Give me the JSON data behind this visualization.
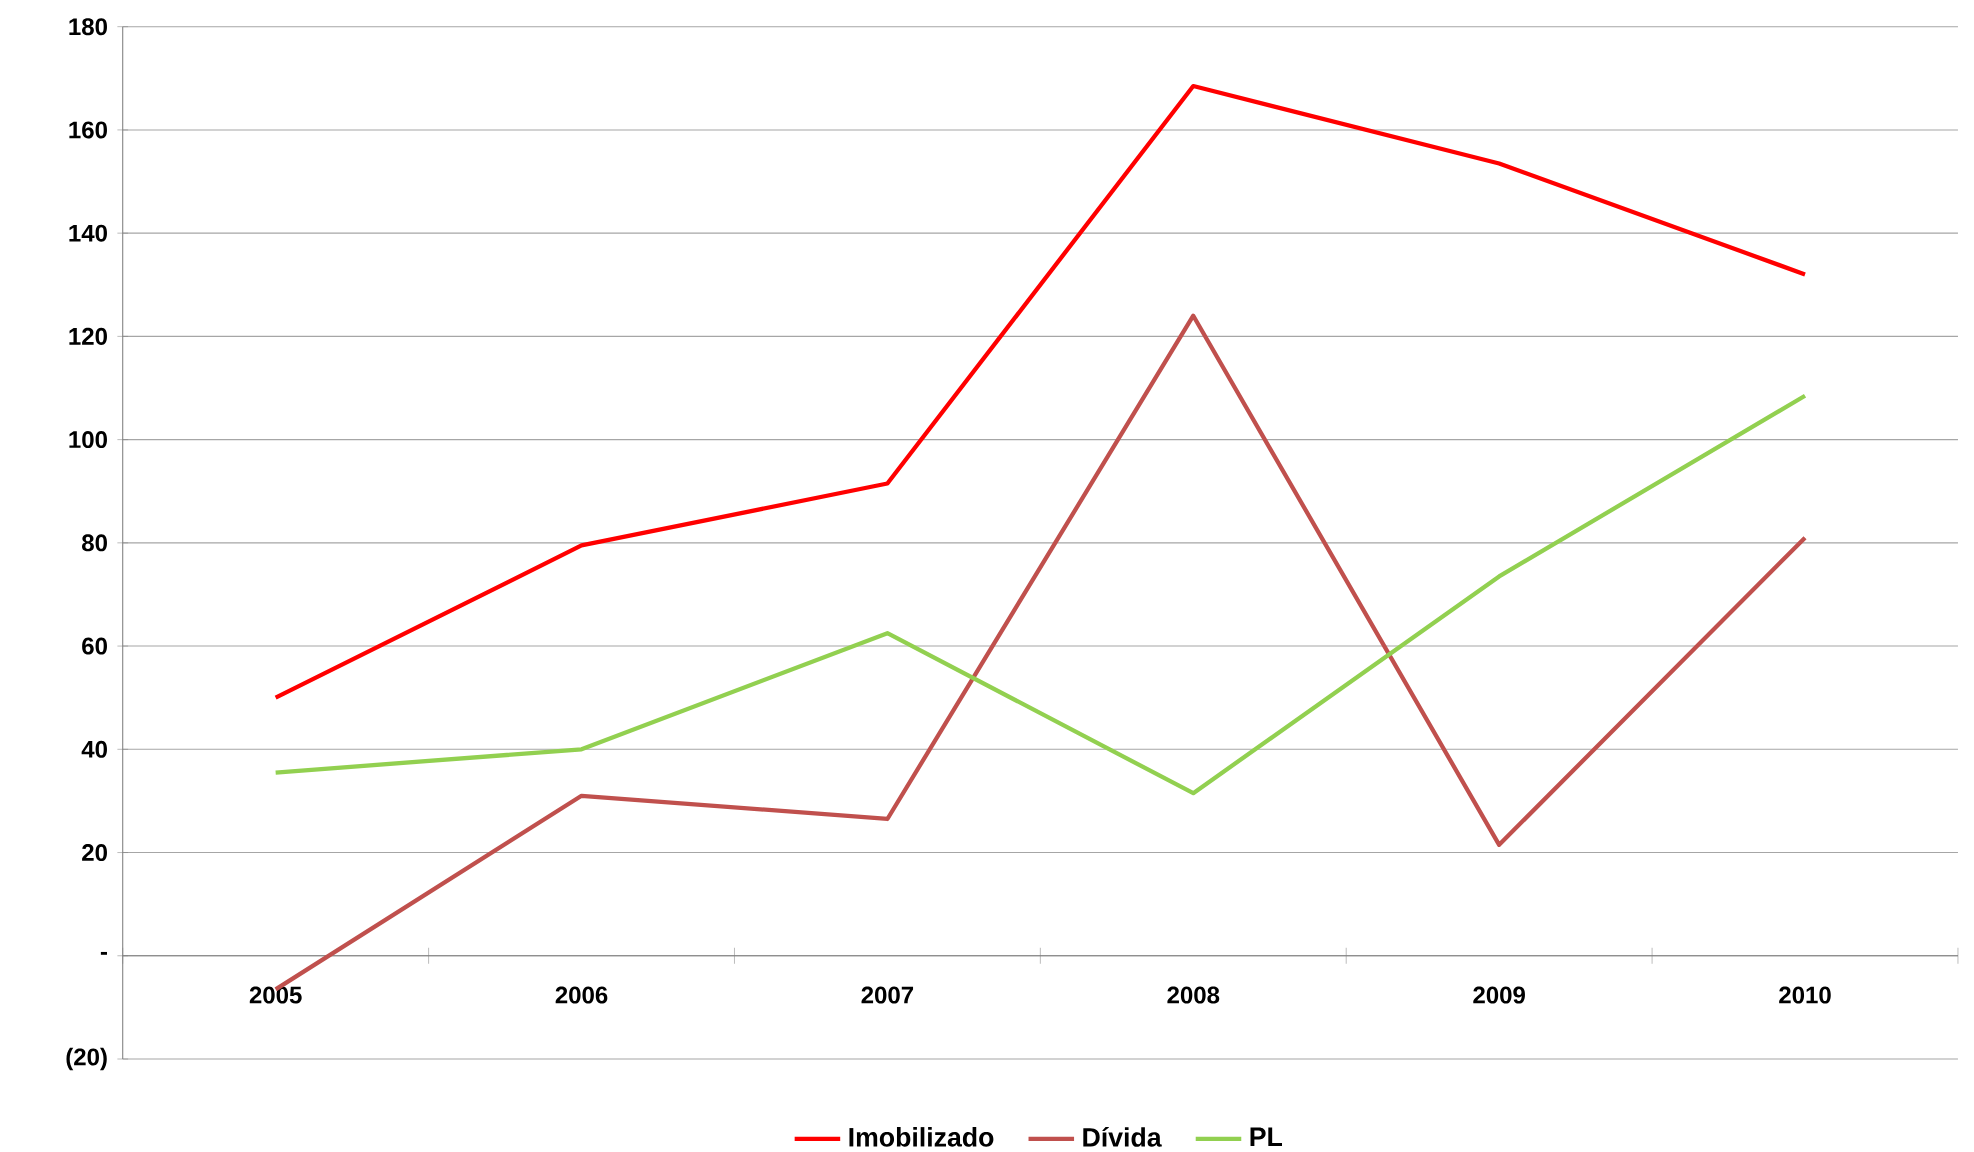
{
  "chart_data": {
    "type": "line",
    "categories": [
      "2005",
      "2006",
      "2007",
      "2008",
      "2009",
      "2010"
    ],
    "series": [
      {
        "name": "Imobilizado",
        "color": "#ff0000",
        "values": [
          50,
          79.5,
          91.5,
          168.5,
          153.5,
          132
        ]
      },
      {
        "name": "Dívida",
        "color": "#c0504d",
        "values": [
          -6.5,
          31,
          26.5,
          124,
          21.5,
          81
        ]
      },
      {
        "name": "PL",
        "color": "#92d050",
        "values": [
          35.5,
          40,
          62.5,
          31.5,
          73.5,
          108.5
        ]
      }
    ],
    "ylim": [
      -20,
      180
    ],
    "yticks": [
      {
        "value": -20,
        "label": "(20)"
      },
      {
        "value": 0,
        "label": "-"
      },
      20,
      40,
      60,
      80,
      100,
      120,
      140,
      160,
      180
    ],
    "grid": "y",
    "legend": "bottom",
    "marker": "none",
    "line_style": "solid"
  }
}
